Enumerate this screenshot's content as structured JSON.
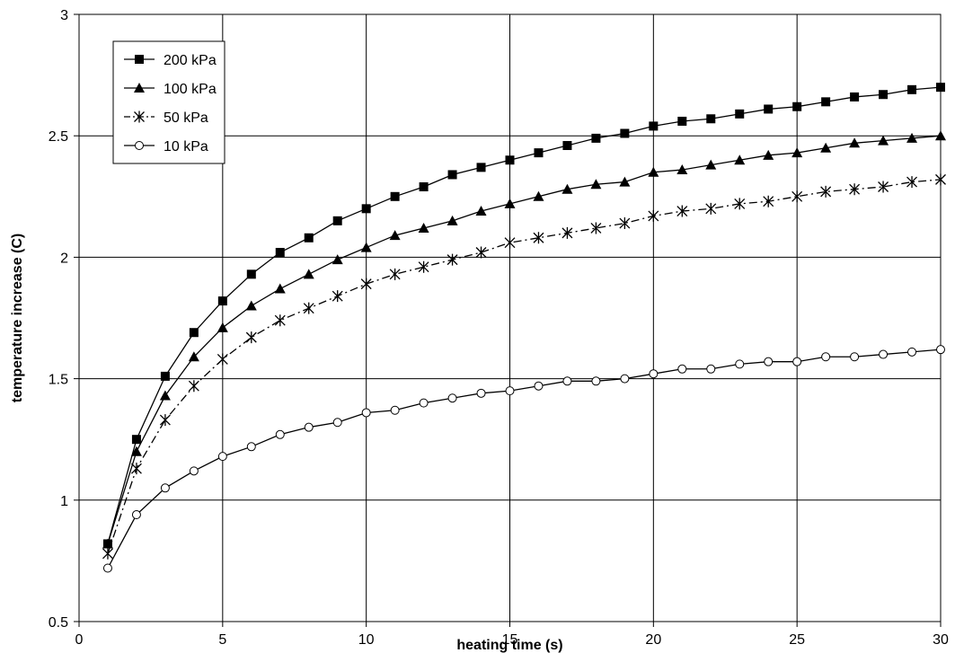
{
  "chart_data": {
    "type": "line",
    "title": "",
    "xlabel": "heating time (s)",
    "ylabel": "temperature increase (C)",
    "xlim": [
      0,
      30
    ],
    "ylim": [
      0.5,
      3
    ],
    "xticks": [
      0,
      5,
      10,
      15,
      20,
      25,
      30
    ],
    "yticks": [
      0.5,
      1,
      1.5,
      2,
      2.5,
      3
    ],
    "xtick_labels": [
      "0",
      "5",
      "10",
      "15",
      "20",
      "25",
      "30"
    ],
    "ytick_labels": [
      "0.5",
      "1",
      "1.5",
      "2",
      "2.5",
      "3"
    ],
    "grid": true,
    "legend_position": "top-left",
    "x": [
      1,
      2,
      3,
      4,
      5,
      6,
      7,
      8,
      9,
      10,
      11,
      12,
      13,
      14,
      15,
      16,
      17,
      18,
      19,
      20,
      21,
      22,
      23,
      24,
      25,
      26,
      27,
      28,
      29,
      30
    ],
    "series": [
      {
        "name": "200 kPa",
        "marker": "square-filled",
        "dash": "solid",
        "values": [
          0.82,
          1.25,
          1.51,
          1.69,
          1.82,
          1.93,
          2.02,
          2.08,
          2.15,
          2.2,
          2.25,
          2.29,
          2.34,
          2.37,
          2.4,
          2.43,
          2.46,
          2.49,
          2.51,
          2.54,
          2.56,
          2.57,
          2.59,
          2.61,
          2.62,
          2.64,
          2.66,
          2.67,
          2.69,
          2.7
        ]
      },
      {
        "name": "100 kPa",
        "marker": "triangle-filled",
        "dash": "solid",
        "values": [
          0.82,
          1.2,
          1.43,
          1.59,
          1.71,
          1.8,
          1.87,
          1.93,
          1.99,
          2.04,
          2.09,
          2.12,
          2.15,
          2.19,
          2.22,
          2.25,
          2.28,
          2.3,
          2.31,
          2.35,
          2.36,
          2.38,
          2.4,
          2.42,
          2.43,
          2.45,
          2.47,
          2.48,
          2.49,
          2.5
        ]
      },
      {
        "name": "50 kPa",
        "marker": "asterisk",
        "dash": "dash-dot",
        "values": [
          0.78,
          1.13,
          1.33,
          1.47,
          1.58,
          1.67,
          1.74,
          1.79,
          1.84,
          1.89,
          1.93,
          1.96,
          1.99,
          2.02,
          2.06,
          2.08,
          2.1,
          2.12,
          2.14,
          2.17,
          2.19,
          2.2,
          2.22,
          2.23,
          2.25,
          2.27,
          2.28,
          2.29,
          2.31,
          2.32
        ]
      },
      {
        "name": "10 kPa",
        "marker": "circle-open",
        "dash": "solid",
        "values": [
          0.72,
          0.94,
          1.05,
          1.12,
          1.18,
          1.22,
          1.27,
          1.3,
          1.32,
          1.36,
          1.37,
          1.4,
          1.42,
          1.44,
          1.45,
          1.47,
          1.49,
          1.49,
          1.5,
          1.52,
          1.54,
          1.54,
          1.56,
          1.57,
          1.57,
          1.59,
          1.59,
          1.6,
          1.61,
          1.62
        ]
      }
    ]
  }
}
